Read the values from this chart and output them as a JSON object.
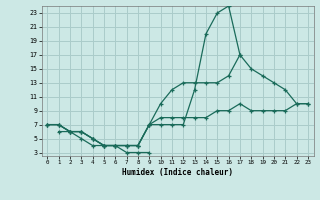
{
  "xlabel": "Humidex (Indice chaleur)",
  "bg_color": "#cce8e5",
  "grid_color": "#aaccca",
  "line_color": "#1a6b5a",
  "xlim": [
    -0.5,
    23.5
  ],
  "ylim": [
    2.5,
    24
  ],
  "xticks": [
    0,
    1,
    2,
    3,
    4,
    5,
    6,
    7,
    8,
    9,
    10,
    11,
    12,
    13,
    14,
    15,
    16,
    17,
    18,
    19,
    20,
    21,
    22,
    23
  ],
  "yticks": [
    3,
    5,
    7,
    9,
    11,
    13,
    15,
    17,
    19,
    21,
    23
  ],
  "line1_x": [
    0,
    1,
    2,
    3,
    4,
    5,
    6,
    7,
    8,
    9,
    10,
    11,
    12,
    13,
    14,
    15,
    16,
    17
  ],
  "line1_y": [
    7,
    7,
    6,
    6,
    5,
    4,
    4,
    4,
    4,
    7,
    7,
    7,
    7,
    12,
    20,
    23,
    24,
    17
  ],
  "line2_x": [
    0,
    1,
    2,
    3,
    4,
    5,
    6,
    7,
    8,
    9,
    10,
    11,
    12,
    13,
    14,
    15,
    16,
    17,
    18,
    19,
    20,
    21,
    22,
    23
  ],
  "line2_y": [
    7,
    7,
    6,
    6,
    5,
    4,
    4,
    4,
    4,
    7,
    10,
    12,
    13,
    13,
    13,
    13,
    14,
    17,
    15,
    14,
    13,
    12,
    10,
    10
  ],
  "line3_x": [
    0,
    1,
    2,
    3,
    4,
    5,
    6,
    7,
    8,
    9,
    10,
    11,
    12,
    13,
    14,
    15,
    16,
    17,
    18,
    19,
    20,
    21,
    22,
    23
  ],
  "line3_y": [
    7,
    7,
    6,
    6,
    5,
    4,
    4,
    4,
    4,
    7,
    8,
    8,
    8,
    8,
    8,
    9,
    9,
    10,
    9,
    9,
    9,
    9,
    10,
    10
  ],
  "line4_x": [
    1,
    2,
    3,
    4,
    5,
    6,
    7,
    8,
    9
  ],
  "line4_y": [
    6,
    6,
    5,
    4,
    4,
    4,
    3,
    3,
    3
  ]
}
